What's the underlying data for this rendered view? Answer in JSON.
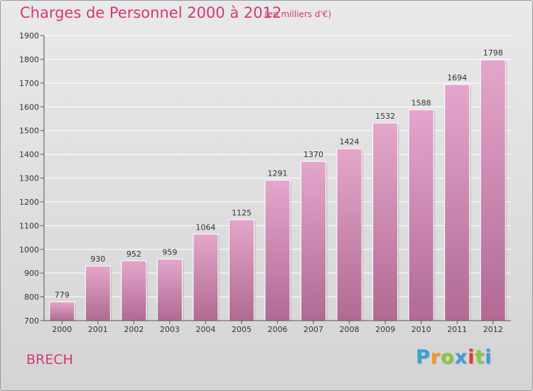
{
  "header": {
    "title": "Charges de Personnel 2000 à 2012",
    "subtitle": "(en milliers d'€)"
  },
  "footer": {
    "commune": "BRECH",
    "brand": "Proxiti",
    "brand_colors": [
      "#3b9fd8",
      "#f39a1f",
      "#8cc63f",
      "#3b9fd8",
      "#e8392b",
      "#8cc63f",
      "#3b9fd8"
    ]
  },
  "colors": {
    "bar": "#dc9ac3",
    "bar_dark": "#b0668f",
    "accent": "#d2377a",
    "grid": "#ffffff"
  },
  "chart_data": {
    "type": "bar",
    "title": "Charges de Personnel 2000 à 2012",
    "subtitle": "(en milliers d'€)",
    "categories": [
      "2000",
      "2001",
      "2002",
      "2003",
      "2004",
      "2005",
      "2006",
      "2007",
      "2008",
      "2009",
      "2010",
      "2011",
      "2012"
    ],
    "values": [
      779,
      930,
      952,
      959,
      1064,
      1125,
      1291,
      1370,
      1424,
      1532,
      1588,
      1694,
      1798
    ],
    "ylim": [
      700,
      1900
    ],
    "yticks": [
      700,
      800,
      900,
      1000,
      1100,
      1200,
      1300,
      1400,
      1500,
      1600,
      1700,
      1800,
      1900
    ],
    "xlabel": "",
    "ylabel": "",
    "grid": true
  }
}
